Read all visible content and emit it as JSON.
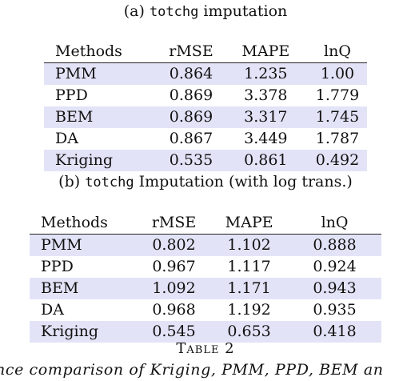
{
  "caption_a": {
    "prefix": "(a) ",
    "code": "totchg",
    "suffix": " imputation"
  },
  "caption_b": {
    "prefix": "(b) ",
    "code": "totchg",
    "suffix": " Imputation (with log trans.)"
  },
  "headers": [
    "Methods",
    "rMSE",
    "MAPE",
    "lnQ"
  ],
  "table_a": [
    [
      "PMM",
      "0.864",
      "1.235",
      "1.00"
    ],
    [
      "PPD",
      "0.869",
      "3.378",
      "1.779"
    ],
    [
      "BEM",
      "0.869",
      "3.317",
      "1.745"
    ],
    [
      "DA",
      "0.867",
      "3.449",
      "1.787"
    ],
    [
      "Kriging",
      "0.535",
      "0.861",
      "0.492"
    ]
  ],
  "table_b": [
    [
      "PMM",
      "0.802",
      "1.102",
      "0.888"
    ],
    [
      "PPD",
      "0.967",
      "1.117",
      "0.924"
    ],
    [
      "BEM",
      "1.092",
      "1.171",
      "0.943"
    ],
    [
      "DA",
      "0.968",
      "1.192",
      "0.935"
    ],
    [
      "Kriging",
      "0.545",
      "0.653",
      "0.418"
    ]
  ],
  "table_label": "Table 2",
  "bottom_caption": "nce comparison of Kriging, PMM, PPD, BEM an"
}
